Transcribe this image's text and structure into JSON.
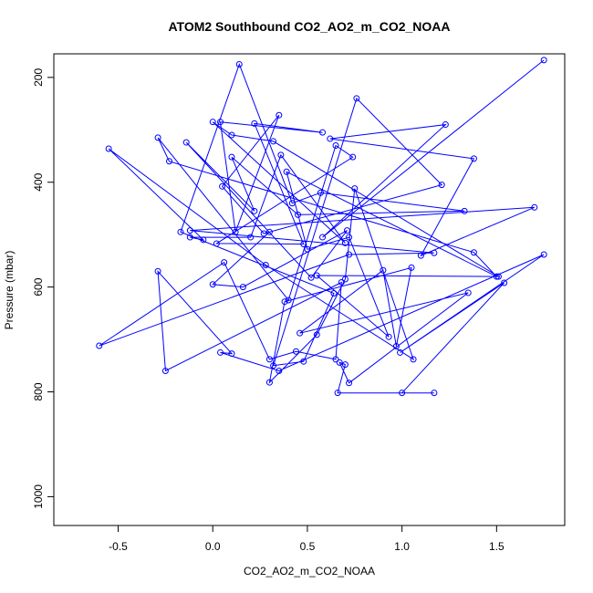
{
  "chart_data": {
    "type": "scatter",
    "title": "ATOM2 Southbound CO2_AO2_m_CO2_NOAA",
    "xlabel": "CO2_AO2_m_CO2_NOAA",
    "ylabel": "Pressure (mbar)",
    "xlim": [
      -0.84,
      1.86
    ],
    "ylim": [
      1055,
      155
    ],
    "y_reversed": true,
    "x_ticks": [
      -0.5,
      0.0,
      0.5,
      1.0,
      1.5
    ],
    "x_tick_labels": [
      "-0.5",
      "0.0",
      "0.5",
      "1.0",
      "1.5"
    ],
    "y_ticks": [
      200,
      400,
      600,
      800,
      1000
    ],
    "y_tick_labels": [
      "200",
      "400",
      "600",
      "800",
      "1000"
    ],
    "grid": false,
    "legend": "none",
    "color": "#0000ff",
    "marker": "open-circle",
    "connected": true,
    "series": [
      {
        "x": [
          1.75,
          0.58,
          1.23,
          0.62,
          1.38,
          1.1,
          1.7,
          -0.12,
          1.17,
          0.72,
          -0.6,
          0.06,
          0.3,
          0.44,
          0.65,
          0.68,
          -0.25,
          -0.29,
          0.1,
          0.04,
          0.35,
          1.75,
          0.99,
          1.54,
          1.0,
          1.17,
          0.66,
          0.7,
          0.67,
          0.72,
          1.35,
          0.46,
          0.9,
          0.97,
          1.05,
          0.38,
          0.3,
          0.55,
          0.7,
          0.75,
          1.06,
          0.28,
          -0.55,
          -0.05,
          -0.12,
          0.2,
          0.36,
          0.7,
          0.0,
          0.1,
          0.32,
          1.51,
          0.55,
          0.93,
          0.72,
          0.5,
          0.39,
          1.5,
          1.38,
          -0.23,
          -0.29,
          0.4,
          0.65,
          0.74,
          0.02,
          0.48,
          0.22,
          0.58,
          0.04,
          0.12,
          0.35,
          0.05,
          0.27,
          1.21,
          0.76,
          0.32,
          0.48,
          0.64,
          -0.17,
          0.14,
          0.42,
          0.57,
          1.33,
          0.45,
          0.1,
          0.22,
          -0.14,
          0.52,
          0.71,
          0.16,
          0.0,
          0.3
        ],
        "y": [
          167,
          505,
          290,
          317,
          355,
          540,
          448,
          492,
          535,
          538,
          712,
          553,
          738,
          723,
          738,
          591,
          760,
          570,
          727,
          725,
          760,
          538,
          725,
          592,
          802,
          802,
          802,
          748,
          744,
          783,
          611,
          688,
          568,
          713,
          563,
          628,
          782,
          691,
          585,
          412,
          738,
          558,
          336,
          510,
          505,
          505,
          348,
          516,
          285,
          310,
          322,
          580,
          578,
          695,
          505,
          528,
          380,
          580,
          534,
          360,
          315,
          625,
          330,
          352,
          517,
          518,
          288,
          305,
          285,
          495,
          272,
          408,
          498,
          405,
          240,
          750,
          742,
          612,
          495,
          175,
          440,
          420,
          455,
          462,
          352,
          455,
          324,
          582,
          492,
          600,
          595,
          495
        ]
      }
    ]
  }
}
